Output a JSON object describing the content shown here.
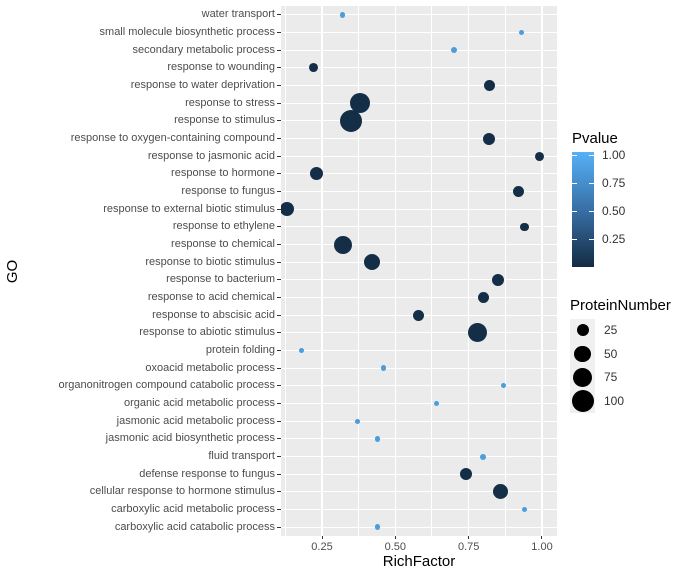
{
  "chart_data": {
    "type": "scatter",
    "title": "",
    "xlabel": "RichFactor",
    "ylabel": "GO",
    "x_tick_labels": [
      "0.25",
      "0.50",
      "0.75",
      "1.00"
    ],
    "x_tick_values": [
      0.25,
      0.5,
      0.75,
      1.0
    ],
    "x_minor_values": [
      0.125,
      0.375,
      0.625,
      0.875
    ],
    "xlim": [
      0.11,
      1.05
    ],
    "grid": "on",
    "legend_position": "right",
    "colors": {
      "panel_bg": "#EBEBEB",
      "grid": "#FFFFFF",
      "scale_low": "#132B43",
      "scale_high": "#56B1F7",
      "axis_text": "#4D4D4D",
      "legend_key_bg": "#F0F0F0"
    },
    "pvalue_legend": {
      "title": "Pvalue",
      "tick_labels": [
        "1.00",
        "0.75",
        "0.50",
        "0.25"
      ],
      "tick_values": [
        1.0,
        0.75,
        0.5,
        0.25
      ]
    },
    "size_legend": {
      "title": "ProteinNumber",
      "tick_labels": [
        "25",
        "50",
        "75",
        "100"
      ],
      "tick_values": [
        25,
        50,
        75,
        100
      ]
    },
    "points": [
      {
        "go": "water transport",
        "rich_factor": 0.32,
        "protein_number": 3,
        "pvalue": 0.85
      },
      {
        "go": "small molecule biosynthetic process",
        "rich_factor": 0.93,
        "protein_number": 3,
        "pvalue": 0.85
      },
      {
        "go": "secondary metabolic process",
        "rich_factor": 0.7,
        "protein_number": 4,
        "pvalue": 0.85
      },
      {
        "go": "response to wounding",
        "rich_factor": 0.22,
        "protein_number": 12,
        "pvalue": 0.02
      },
      {
        "go": "response to water deprivation",
        "rich_factor": 0.82,
        "protein_number": 20,
        "pvalue": 0.02
      },
      {
        "go": "response to stress",
        "rich_factor": 0.38,
        "protein_number": 85,
        "pvalue": 0.02
      },
      {
        "go": "response to stimulus",
        "rich_factor": 0.35,
        "protein_number": 100,
        "pvalue": 0.02
      },
      {
        "go": "response to oxygen-containing compound",
        "rich_factor": 0.82,
        "protein_number": 25,
        "pvalue": 0.02
      },
      {
        "go": "response to jasmonic acid",
        "rich_factor": 0.99,
        "protein_number": 12,
        "pvalue": 0.02
      },
      {
        "go": "response to hormone",
        "rich_factor": 0.23,
        "protein_number": 30,
        "pvalue": 0.02
      },
      {
        "go": "response to fungus",
        "rich_factor": 0.92,
        "protein_number": 20,
        "pvalue": 0.02
      },
      {
        "go": "response to external biotic stimulus",
        "rich_factor": 0.13,
        "protein_number": 36,
        "pvalue": 0.02
      },
      {
        "go": "response to ethylene",
        "rich_factor": 0.94,
        "protein_number": 10,
        "pvalue": 0.02
      },
      {
        "go": "response to chemical",
        "rich_factor": 0.32,
        "protein_number": 64,
        "pvalue": 0.02
      },
      {
        "go": "response to biotic stimulus",
        "rich_factor": 0.42,
        "protein_number": 50,
        "pvalue": 0.02
      },
      {
        "go": "response to bacterium",
        "rich_factor": 0.85,
        "protein_number": 28,
        "pvalue": 0.02
      },
      {
        "go": "response to acid chemical",
        "rich_factor": 0.8,
        "protein_number": 20,
        "pvalue": 0.02
      },
      {
        "go": "response to abscisic acid",
        "rich_factor": 0.58,
        "protein_number": 20,
        "pvalue": 0.02
      },
      {
        "go": "response to abiotic stimulus",
        "rich_factor": 0.78,
        "protein_number": 72,
        "pvalue": 0.02
      },
      {
        "go": "protein folding",
        "rich_factor": 0.18,
        "protein_number": 2,
        "pvalue": 0.85
      },
      {
        "go": "oxoacid metabolic process",
        "rich_factor": 0.46,
        "protein_number": 3,
        "pvalue": 0.85
      },
      {
        "go": "organonitrogen compound catabolic process",
        "rich_factor": 0.87,
        "protein_number": 2,
        "pvalue": 0.85
      },
      {
        "go": "organic acid metabolic process",
        "rich_factor": 0.64,
        "protein_number": 3,
        "pvalue": 0.85
      },
      {
        "go": "jasmonic acid metabolic process",
        "rich_factor": 0.37,
        "protein_number": 2,
        "pvalue": 0.85
      },
      {
        "go": "jasmonic acid biosynthetic process",
        "rich_factor": 0.44,
        "protein_number": 3,
        "pvalue": 0.85
      },
      {
        "go": "fluid transport",
        "rich_factor": 0.8,
        "protein_number": 4,
        "pvalue": 0.85
      },
      {
        "go": "defense response to fungus",
        "rich_factor": 0.74,
        "protein_number": 25,
        "pvalue": 0.02
      },
      {
        "go": "cellular response to hormone stimulus",
        "rich_factor": 0.86,
        "protein_number": 42,
        "pvalue": 0.02
      },
      {
        "go": "carboxylic acid metabolic process",
        "rich_factor": 0.94,
        "protein_number": 3,
        "pvalue": 0.85
      },
      {
        "go": "carboxylic acid catabolic process",
        "rich_factor": 0.44,
        "protein_number": 3,
        "pvalue": 0.85
      }
    ]
  }
}
